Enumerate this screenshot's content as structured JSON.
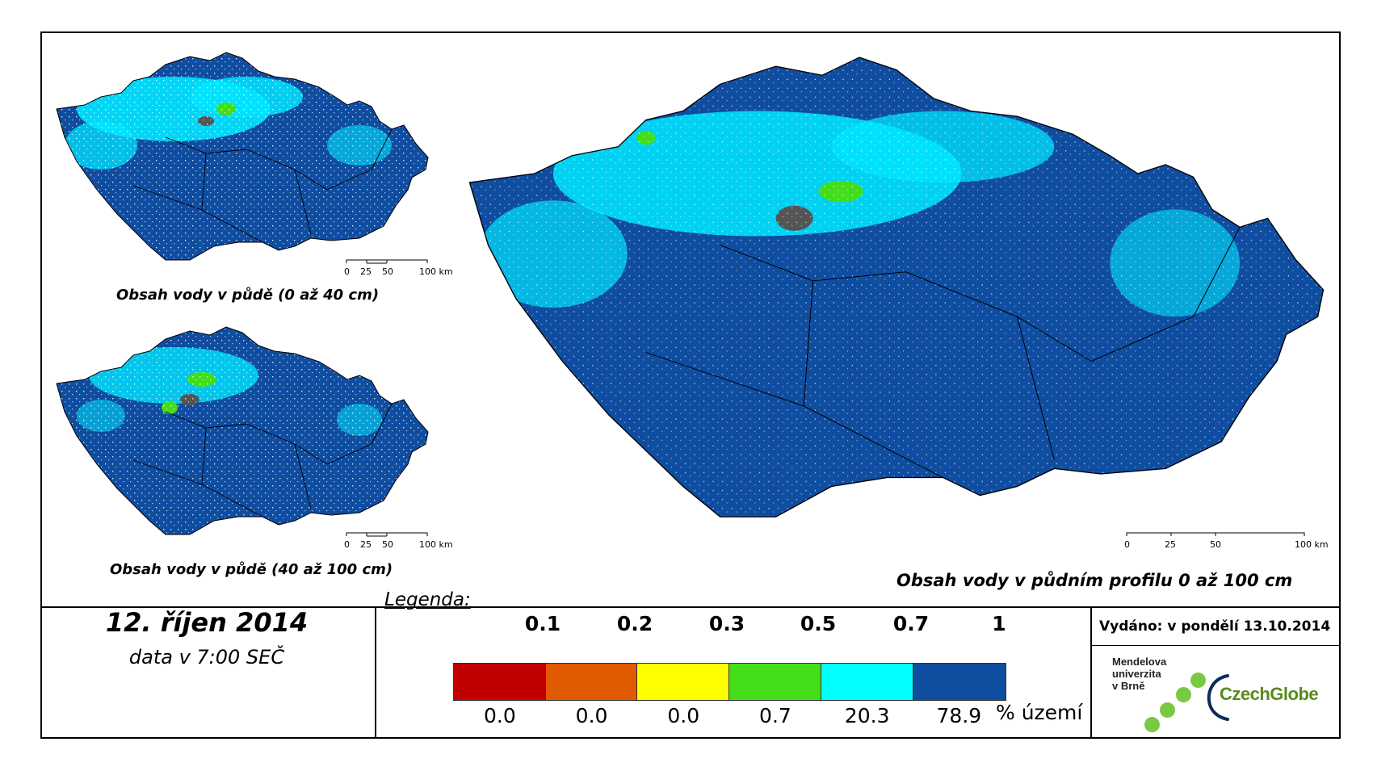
{
  "maps": {
    "small_top": {
      "caption": "Obsah vody v půdě (0 až 40 cm)"
    },
    "small_bottom": {
      "caption": "Obsah vody v půdě (40 až 100 cm)"
    },
    "main": {
      "caption": "Obsah vody v půdním profilu 0 až 100 cm"
    }
  },
  "scale_bar": {
    "labels": [
      "0",
      "25",
      "50",
      "100 km"
    ]
  },
  "date": {
    "title": "12. říjen 2014",
    "subtitle": "data v 7:00 SEČ"
  },
  "legend": {
    "title": "Legenda:",
    "thresholds": [
      "0.1",
      "0.2",
      "0.3",
      "0.5",
      "0.7",
      "1"
    ],
    "classes": [
      {
        "color": "#c00000",
        "percent": "0.0"
      },
      {
        "color": "#e05a00",
        "percent": "0.0"
      },
      {
        "color": "#ffff00",
        "percent": "0.0"
      },
      {
        "color": "#44dd1a",
        "percent": "0.7"
      },
      {
        "color": "#00ffff",
        "percent": "20.3"
      },
      {
        "color": "#0f4da0",
        "percent": "78.9"
      }
    ],
    "percent_unit": "% území"
  },
  "issued": "Vydáno: v pondělí 13.10.2014",
  "logos": {
    "mendel_lines": [
      "Mendelova",
      "univerzita",
      "v Brně"
    ],
    "czechglobe": "CzechGlobe"
  },
  "colors": {
    "map_base": "#0f4da0",
    "map_wet_patch": "#00e5ff",
    "map_green": "#44dd1a",
    "urban": "#555555",
    "border": "#000000"
  }
}
